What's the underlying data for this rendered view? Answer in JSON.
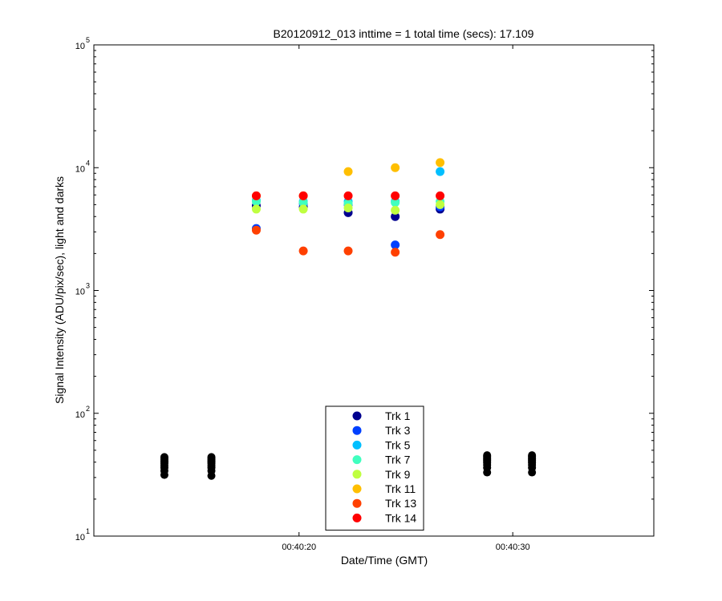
{
  "chart_data": {
    "type": "scatter",
    "title": "B20120912_013 inttime = 1 total time (secs): 17.109",
    "xlabel": "Date/Time (GMT)",
    "ylabel": "Signal Intensity (ADU/pix/sec), light and darks",
    "y_scale": "log",
    "ylim": [
      10,
      100000
    ],
    "xlim": [
      "00:40:10.4",
      "00:40:36.6"
    ],
    "grid": false,
    "legend_position": "bottom-center",
    "x_ticks": [
      "00:40:20",
      "00:40:30"
    ],
    "y_ticks": [
      {
        "base": "10",
        "exp": "1",
        "value": 10
      },
      {
        "base": "10",
        "exp": "2",
        "value": 100
      },
      {
        "base": "10",
        "exp": "3",
        "value": 1000
      },
      {
        "base": "10",
        "exp": "4",
        "value": 10000
      },
      {
        "base": "10",
        "exp": "5",
        "value": 100000
      }
    ],
    "light_times": [
      "00:40:18.0",
      "00:40:20.2",
      "00:40:22.3",
      "00:40:24.5",
      "00:40:26.6"
    ],
    "series": [
      {
        "name": "Trk 1",
        "color": "#00008f",
        "values": [
          4900,
          4800,
          4300,
          4000,
          4600
        ]
      },
      {
        "name": "Trk 3",
        "color": "#0040ff",
        "values": [
          3200,
          5100,
          5000,
          2350,
          4800
        ]
      },
      {
        "name": "Trk 5",
        "color": "#00bfff",
        "values": [
          5400,
          5300,
          5300,
          5300,
          9300
        ]
      },
      {
        "name": "Trk 7",
        "color": "#40ffbf",
        "values": [
          5300,
          5200,
          5100,
          5200,
          5300
        ]
      },
      {
        "name": "Trk 9",
        "color": "#bfff40",
        "values": [
          4600,
          4600,
          4700,
          4500,
          5000
        ]
      },
      {
        "name": "Trk 11",
        "color": "#ffbf00",
        "values": [
          5900,
          5900,
          9300,
          10000,
          11000
        ]
      },
      {
        "name": "Trk 13",
        "color": "#ff4000",
        "values": [
          3100,
          2100,
          2100,
          2050,
          2850
        ]
      },
      {
        "name": "Trk 14",
        "color": "#ff0000",
        "values": [
          5900,
          5900,
          5900,
          5900,
          5900
        ]
      }
    ],
    "darks": {
      "color": "#000000",
      "times": [
        "00:40:13.7",
        "00:40:15.9",
        "00:40:28.8",
        "00:40:30.9"
      ],
      "values": [
        [
          31.5,
          34,
          36,
          37.5,
          39,
          40,
          41,
          42,
          43,
          44
        ],
        [
          31,
          34,
          36,
          37.5,
          39,
          40,
          41,
          42,
          43,
          44
        ],
        [
          33,
          36,
          38,
          39.5,
          40.5,
          41.5,
          42.5,
          43.5,
          44.5,
          45.5
        ],
        [
          33,
          36,
          38,
          39.5,
          40.5,
          41.5,
          42.5,
          43.5,
          44.5,
          45.5
        ]
      ]
    }
  }
}
